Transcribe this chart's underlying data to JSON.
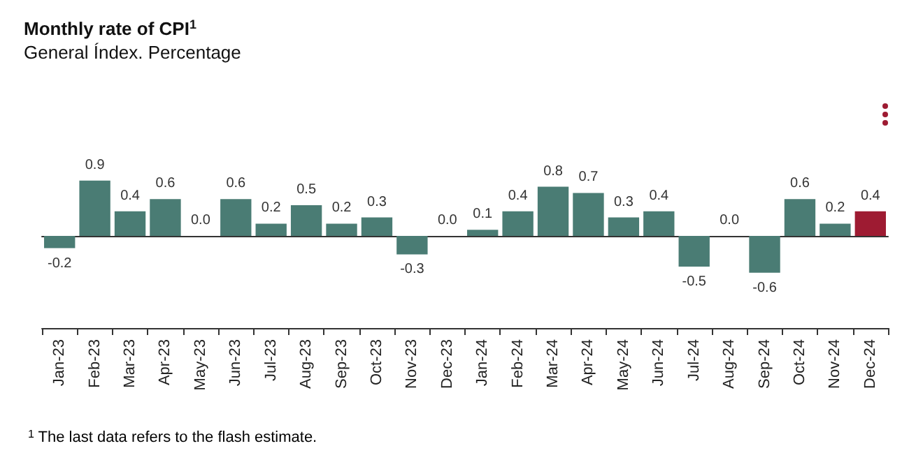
{
  "chart_data": {
    "type": "bar",
    "title": "Monthly rate of CPI$^{1}$",
    "subtitle": "General Índex. Percentage",
    "categories": [
      "Jan-23",
      "Feb-23",
      "Mar-23",
      "Apr-23",
      "May-23",
      "Jun-23",
      "Jul-23",
      "Aug-23",
      "Sep-23",
      "Oct-23",
      "Nov-23",
      "Dec-23",
      "Jan-24",
      "Feb-24",
      "Mar-24",
      "Apr-24",
      "May-24",
      "Jun-24",
      "Jul-24",
      "Aug-24",
      "Sep-24",
      "Oct-24",
      "Nov-24",
      "Dec-24"
    ],
    "values": [
      -0.2,
      0.9,
      0.4,
      0.6,
      0.0,
      0.6,
      0.2,
      0.5,
      0.2,
      0.3,
      -0.3,
      0.0,
      0.1,
      0.4,
      0.8,
      0.7,
      0.3,
      0.4,
      -0.5,
      0.0,
      -0.6,
      0.6,
      0.2,
      0.4
    ],
    "value_labels": [
      "-0.2",
      "0.9",
      "0.4",
      "0.6",
      "0.0",
      "0.6",
      "0.2",
      "0.5",
      "0.2",
      "0.3",
      "-0.3",
      "0.0",
      "0.1",
      "0.4",
      "0.8",
      "0.7",
      "0.3",
      "0.4",
      "-0.5",
      "0.0",
      "-0.6",
      "0.6",
      "0.2",
      "0.4"
    ],
    "colors": [
      "#4a7c74",
      "#4a7c74",
      "#4a7c74",
      "#4a7c74",
      "#4a7c74",
      "#4a7c74",
      "#4a7c74",
      "#4a7c74",
      "#4a7c74",
      "#4a7c74",
      "#4a7c74",
      "#4a7c74",
      "#4a7c74",
      "#4a7c74",
      "#4a7c74",
      "#4a7c74",
      "#4a7c74",
      "#4a7c74",
      "#4a7c74",
      "#4a7c74",
      "#4a7c74",
      "#4a7c74",
      "#4a7c74",
      "#9e1b32"
    ],
    "annotations": [
      "$^{1}$ The last data refers to the flash estimate."
    ],
    "grid": false
  }
}
